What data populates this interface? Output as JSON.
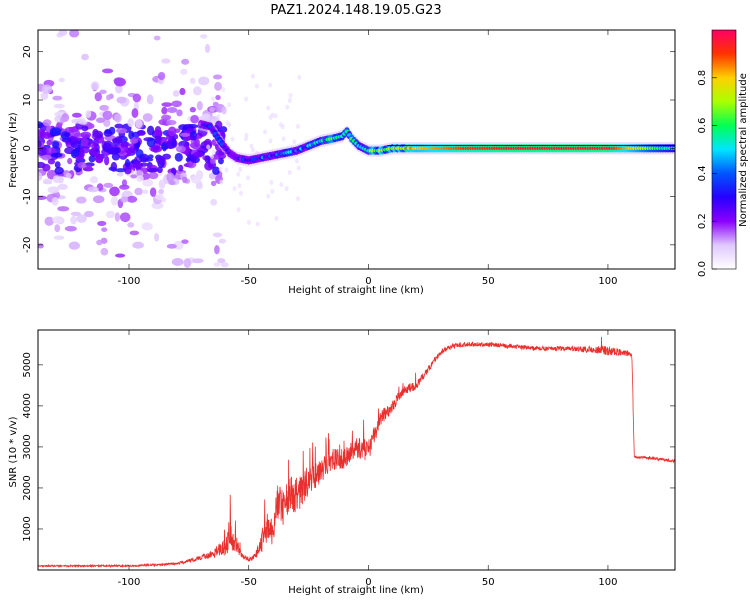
{
  "chart_data": [
    {
      "type": "heatmap",
      "title": "PAZ1.2024.148.19.05.G23",
      "xlabel": "Height of straight line (km)",
      "ylabel": "Frequency (Hz)",
      "xlim": [
        -138,
        128
      ],
      "ylim": [
        -25,
        24.5
      ],
      "xticks": [
        -100,
        -50,
        0,
        50,
        100
      ],
      "yticks": [
        -20,
        -10,
        0,
        10,
        20
      ],
      "colorbar": {
        "label": "Normalized spectral amplitude",
        "range": [
          0,
          1
        ],
        "ticks": [
          "0.0",
          "0.2",
          "0.4",
          "0.6",
          "0.8"
        ],
        "colors": [
          "#ffffff",
          "#e0c8ff",
          "#8a00ff",
          "#2600ff",
          "#0055ff",
          "#00e5ff",
          "#00ff55",
          "#aaff00",
          "#ffd000",
          "#ff3300",
          "#ff0066"
        ]
      },
      "ridge": {
        "x": [
          -70,
          -66,
          -62,
          -58,
          -55,
          -50,
          -45,
          -40,
          -35,
          -30,
          -25,
          -20,
          -15,
          -11,
          -9,
          -7,
          -4,
          0,
          5,
          10,
          20,
          40,
          60,
          80,
          100,
          128
        ],
        "y": [
          5,
          4.5,
          1.5,
          -1,
          -2,
          -2.5,
          -2,
          -1.5,
          -1,
          -0.5,
          0.5,
          1.5,
          2,
          2.5,
          3.5,
          2,
          0.5,
          -0.5,
          -0.5,
          0,
          0,
          0,
          0,
          0,
          0,
          0
        ],
        "amplitude": [
          0.25,
          0.25,
          0.3,
          0.3,
          0.3,
          0.32,
          0.35,
          0.38,
          0.4,
          0.42,
          0.45,
          0.5,
          0.55,
          0.55,
          0.5,
          0.55,
          0.55,
          0.6,
          0.65,
          0.7,
          0.8,
          0.9,
          0.95,
          0.95,
          0.95,
          0.5
        ]
      },
      "noise_region": [
        -138,
        -68
      ]
    },
    {
      "type": "line",
      "xlabel": "Height of straight line (km)",
      "ylabel": "SNR (10 * v/v)",
      "xlim": [
        -138,
        128
      ],
      "ylim": [
        0,
        5850
      ],
      "xticks": [
        -100,
        -50,
        0,
        50,
        100
      ],
      "yticks": [
        1000,
        2000,
        3000,
        4000,
        5000
      ],
      "color": "#e8302e",
      "envelope": {
        "x": [
          -138,
          -100,
          -80,
          -70,
          -65,
          -60,
          -58,
          -55,
          -53,
          -50,
          -47,
          -45,
          -42,
          -40,
          -38,
          -35,
          -33,
          -30,
          -25,
          -20,
          -15,
          -10,
          -5,
          0,
          5,
          10,
          15,
          20,
          25,
          30,
          35,
          40,
          50,
          60,
          70,
          80,
          90,
          100,
          110,
          111,
          115,
          128
        ],
        "y": [
          100,
          100,
          150,
          300,
          400,
          550,
          800,
          600,
          350,
          250,
          350,
          600,
          1100,
          900,
          1700,
          1500,
          1900,
          1800,
          2200,
          2400,
          2700,
          2700,
          3000,
          2900,
          3700,
          4000,
          4400,
          4500,
          4900,
          5300,
          5450,
          5500,
          5500,
          5450,
          5400,
          5400,
          5380,
          5350,
          5250,
          2750,
          2750,
          2650
        ],
        "noise": [
          40,
          40,
          60,
          120,
          200,
          400,
          700,
          400,
          150,
          100,
          200,
          450,
          700,
          600,
          900,
          900,
          900,
          900,
          700,
          600,
          500,
          500,
          550,
          500,
          350,
          300,
          250,
          200,
          150,
          120,
          120,
          120,
          110,
          110,
          110,
          120,
          140,
          220,
          120,
          60,
          60,
          60
        ]
      }
    }
  ]
}
